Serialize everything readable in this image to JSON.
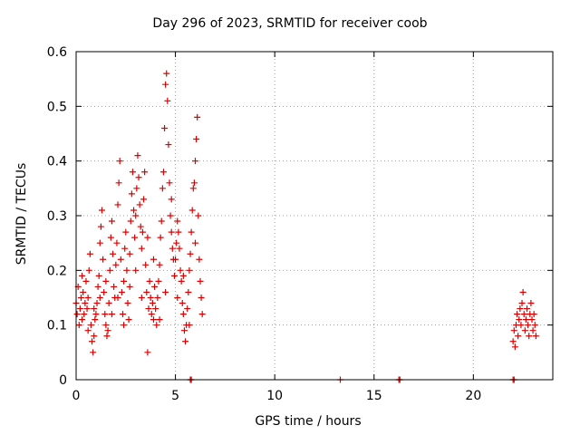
{
  "chart_data": {
    "type": "scatter",
    "title": "Day 296 of 2023, SRMTID for receiver coob",
    "xlabel": "GPS time / hours",
    "ylabel": "SRMTID / TECUs",
    "xlim": [
      0,
      24
    ],
    "ylim": [
      0,
      0.6
    ],
    "xticks": [
      0,
      5,
      10,
      15,
      20
    ],
    "yticks": [
      0,
      0.1,
      0.2,
      0.3,
      0.4,
      0.5,
      0.6
    ],
    "ytick_labels": [
      "0",
      "0.1",
      "0.2",
      "0.3",
      "0.4",
      "0.5",
      "0.6"
    ],
    "grid": true,
    "marker": "+",
    "color": "#dd0000",
    "series": [
      {
        "name": "SRMTID",
        "points": [
          [
            0.0,
            0.14
          ],
          [
            0.05,
            0.12
          ],
          [
            0.1,
            0.17
          ],
          [
            0.15,
            0.1
          ],
          [
            0.2,
            0.13
          ],
          [
            0.25,
            0.15
          ],
          [
            0.3,
            0.11
          ],
          [
            0.35,
            0.16
          ],
          [
            0.4,
            0.12
          ],
          [
            0.45,
            0.14
          ],
          [
            0.5,
            0.18
          ],
          [
            0.55,
            0.13
          ],
          [
            0.6,
            0.15
          ],
          [
            0.65,
            0.2
          ],
          [
            0.7,
            0.23
          ],
          [
            0.75,
            0.1
          ],
          [
            0.8,
            0.07
          ],
          [
            0.85,
            0.05
          ],
          [
            0.9,
            0.08
          ],
          [
            0.95,
            0.11
          ],
          [
            1.0,
            0.12
          ],
          [
            1.05,
            0.14
          ],
          [
            1.1,
            0.17
          ],
          [
            1.15,
            0.19
          ],
          [
            1.2,
            0.25
          ],
          [
            1.25,
            0.28
          ],
          [
            1.3,
            0.31
          ],
          [
            1.35,
            0.22
          ],
          [
            1.4,
            0.16
          ],
          [
            1.45,
            0.12
          ],
          [
            1.5,
            0.1
          ],
          [
            1.55,
            0.08
          ],
          [
            1.6,
            0.09
          ],
          [
            1.65,
            0.14
          ],
          [
            1.7,
            0.2
          ],
          [
            1.75,
            0.26
          ],
          [
            1.8,
            0.29
          ],
          [
            1.85,
            0.23
          ],
          [
            1.9,
            0.17
          ],
          [
            1.95,
            0.15
          ],
          [
            2.0,
            0.21
          ],
          [
            2.05,
            0.25
          ],
          [
            2.1,
            0.32
          ],
          [
            2.15,
            0.36
          ],
          [
            2.2,
            0.4
          ],
          [
            2.25,
            0.22
          ],
          [
            2.3,
            0.16
          ],
          [
            2.35,
            0.12
          ],
          [
            2.4,
            0.18
          ],
          [
            2.45,
            0.24
          ],
          [
            2.5,
            0.27
          ],
          [
            2.55,
            0.2
          ],
          [
            2.6,
            0.14
          ],
          [
            2.65,
            0.11
          ],
          [
            2.7,
            0.23
          ],
          [
            2.75,
            0.29
          ],
          [
            2.8,
            0.34
          ],
          [
            2.85,
            0.38
          ],
          [
            2.9,
            0.31
          ],
          [
            2.95,
            0.26
          ],
          [
            3.0,
            0.3
          ],
          [
            3.05,
            0.35
          ],
          [
            3.1,
            0.41
          ],
          [
            3.15,
            0.37
          ],
          [
            3.2,
            0.32
          ],
          [
            3.25,
            0.28
          ],
          [
            3.3,
            0.24
          ],
          [
            3.35,
            0.27
          ],
          [
            3.4,
            0.33
          ],
          [
            3.45,
            0.38
          ],
          [
            3.5,
            0.21
          ],
          [
            3.55,
            0.16
          ],
          [
            3.6,
            0.05
          ],
          [
            3.65,
            0.13
          ],
          [
            3.7,
            0.18
          ],
          [
            3.75,
            0.15
          ],
          [
            3.8,
            0.12
          ],
          [
            3.85,
            0.14
          ],
          [
            3.9,
            0.11
          ],
          [
            3.95,
            0.17
          ],
          [
            4.0,
            0.13
          ],
          [
            4.05,
            0.1
          ],
          [
            4.1,
            0.15
          ],
          [
            4.15,
            0.18
          ],
          [
            4.2,
            0.21
          ],
          [
            4.25,
            0.26
          ],
          [
            4.3,
            0.29
          ],
          [
            4.35,
            0.35
          ],
          [
            4.4,
            0.38
          ],
          [
            4.45,
            0.46
          ],
          [
            4.5,
            0.54
          ],
          [
            4.55,
            0.56
          ],
          [
            4.6,
            0.51
          ],
          [
            4.65,
            0.43
          ],
          [
            4.7,
            0.36
          ],
          [
            4.75,
            0.3
          ],
          [
            4.8,
            0.27
          ],
          [
            4.85,
            0.24
          ],
          [
            4.9,
            0.22
          ],
          [
            4.95,
            0.19
          ],
          [
            5.0,
            0.22
          ],
          [
            5.05,
            0.25
          ],
          [
            5.1,
            0.29
          ],
          [
            5.15,
            0.27
          ],
          [
            5.2,
            0.24
          ],
          [
            5.25,
            0.2
          ],
          [
            5.3,
            0.18
          ],
          [
            5.35,
            0.14
          ],
          [
            5.4,
            0.12
          ],
          [
            5.45,
            0.09
          ],
          [
            5.5,
            0.07
          ],
          [
            5.55,
            0.1
          ],
          [
            5.6,
            0.13
          ],
          [
            5.65,
            0.16
          ],
          [
            5.7,
            0.2
          ],
          [
            5.75,
            0.23
          ],
          [
            5.8,
            0.27
          ],
          [
            5.85,
            0.31
          ],
          [
            5.9,
            0.35
          ],
          [
            5.95,
            0.36
          ],
          [
            6.0,
            0.4
          ],
          [
            6.05,
            0.44
          ],
          [
            6.1,
            0.48
          ],
          [
            6.15,
            0.3
          ],
          [
            6.2,
            0.22
          ],
          [
            6.25,
            0.18
          ],
          [
            6.3,
            0.15
          ],
          [
            6.35,
            0.12
          ],
          [
            0.3,
            0.19
          ],
          [
            0.6,
            0.09
          ],
          [
            0.9,
            0.13
          ],
          [
            1.2,
            0.15
          ],
          [
            1.5,
            0.18
          ],
          [
            1.8,
            0.12
          ],
          [
            2.1,
            0.15
          ],
          [
            2.4,
            0.1
          ],
          [
            2.7,
            0.17
          ],
          [
            3.0,
            0.2
          ],
          [
            3.3,
            0.15
          ],
          [
            3.6,
            0.26
          ],
          [
            3.9,
            0.22
          ],
          [
            4.2,
            0.11
          ],
          [
            4.5,
            0.16
          ],
          [
            4.8,
            0.33
          ],
          [
            5.1,
            0.15
          ],
          [
            5.4,
            0.19
          ],
          [
            5.7,
            0.1
          ],
          [
            6.0,
            0.25
          ],
          [
            22.0,
            0.07
          ],
          [
            22.05,
            0.09
          ],
          [
            22.1,
            0.06
          ],
          [
            22.15,
            0.1
          ],
          [
            22.2,
            0.12
          ],
          [
            22.25,
            0.08
          ],
          [
            22.3,
            0.11
          ],
          [
            22.35,
            0.13
          ],
          [
            22.4,
            0.1
          ],
          [
            22.45,
            0.14
          ],
          [
            22.5,
            0.16
          ],
          [
            22.55,
            0.12
          ],
          [
            22.6,
            0.09
          ],
          [
            22.65,
            0.11
          ],
          [
            22.7,
            0.13
          ],
          [
            22.75,
            0.1
          ],
          [
            22.8,
            0.08
          ],
          [
            22.85,
            0.12
          ],
          [
            22.9,
            0.14
          ],
          [
            22.95,
            0.11
          ],
          [
            23.0,
            0.09
          ],
          [
            23.05,
            0.12
          ],
          [
            23.1,
            0.1
          ],
          [
            23.15,
            0.08
          ],
          [
            5.75,
            0.0
          ],
          [
            5.8,
            0.0
          ],
          [
            13.3,
            0.0
          ],
          [
            16.25,
            0.0
          ],
          [
            16.3,
            0.0
          ],
          [
            22.0,
            0.0
          ],
          [
            22.05,
            0.0
          ]
        ]
      }
    ]
  }
}
